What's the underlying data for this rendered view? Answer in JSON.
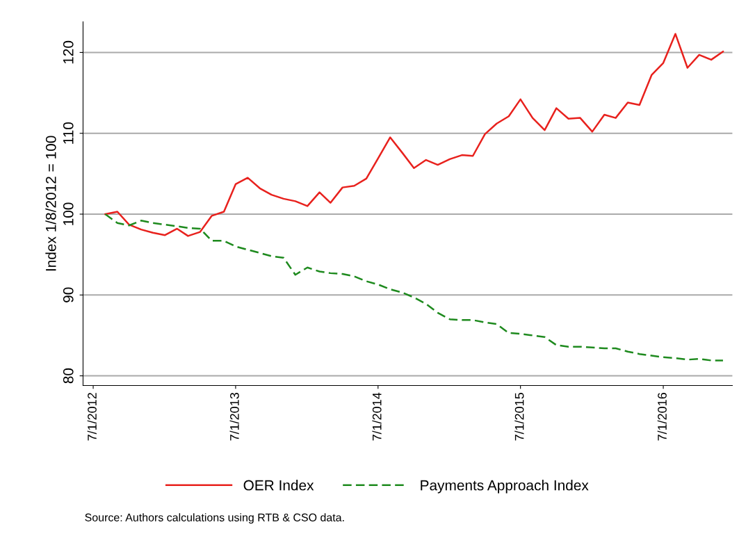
{
  "chart_data": {
    "type": "line",
    "ylabel": "Index 1/8/2012 = 100",
    "x": [
      "2012-08",
      "2012-09",
      "2012-10",
      "2012-11",
      "2012-12",
      "2013-01",
      "2013-02",
      "2013-03",
      "2013-04",
      "2013-05",
      "2013-06",
      "2013-07",
      "2013-08",
      "2013-09",
      "2013-10",
      "2013-11",
      "2013-12",
      "2014-01",
      "2014-02",
      "2014-03",
      "2014-04",
      "2014-05",
      "2014-06",
      "2014-07",
      "2014-08",
      "2014-09",
      "2014-10",
      "2014-11",
      "2014-12",
      "2015-01",
      "2015-02",
      "2015-03",
      "2015-04",
      "2015-05",
      "2015-06",
      "2015-07",
      "2015-08",
      "2015-09",
      "2015-10",
      "2015-11",
      "2015-12",
      "2016-01",
      "2016-02",
      "2016-03",
      "2016-04",
      "2016-05",
      "2016-06",
      "2016-07",
      "2016-08",
      "2016-09",
      "2016-10",
      "2016-11",
      "2016-12"
    ],
    "series": [
      {
        "name": "OER Index",
        "color": "#e8211d",
        "line_style": "solid",
        "values": [
          100,
          100.3,
          98.7,
          98.1,
          97.7,
          97.4,
          98.2,
          97.3,
          97.8,
          99.8,
          100.3,
          103.7,
          104.5,
          103.2,
          102.4,
          101.9,
          101.6,
          101.0,
          102.7,
          101.4,
          103.3,
          103.5,
          104.4,
          106.9,
          109.5,
          107.6,
          105.7,
          106.7,
          106.1,
          106.8,
          107.3,
          107.2,
          109.9,
          111.2,
          112.1,
          114.2,
          111.9,
          110.4,
          113.1,
          111.8,
          111.9,
          110.2,
          112.3,
          111.9,
          113.8,
          113.5,
          117.2,
          118.7,
          122.3,
          118.1,
          119.7,
          119.1,
          120.1
        ]
      },
      {
        "name": "Payments Approach Index",
        "color": "#1e8a1e",
        "line_style": "dashed",
        "values": [
          100,
          98.9,
          98.6,
          99.2,
          98.9,
          98.7,
          98.5,
          98.3,
          98.2,
          96.7,
          96.7,
          96.0,
          95.6,
          95.2,
          94.8,
          94.6,
          92.5,
          93.4,
          92.9,
          92.7,
          92.6,
          92.3,
          91.7,
          91.3,
          90.7,
          90.3,
          89.7,
          88.9,
          87.8,
          87.0,
          86.9,
          86.9,
          86.6,
          86.4,
          85.3,
          85.2,
          85.0,
          84.8,
          83.8,
          83.6,
          83.6,
          83.5,
          83.4,
          83.4,
          83.0,
          82.7,
          82.5,
          82.3,
          82.2,
          82.0,
          82.1,
          81.9,
          81.9
        ]
      }
    ],
    "xlim": [
      "2012-06-05",
      "2016-12-25"
    ],
    "xticks": [
      {
        "value": "2012-07-01",
        "label": "7/1/2012"
      },
      {
        "value": "2013-07-01",
        "label": "7/1/2013"
      },
      {
        "value": "2014-07-01",
        "label": "7/1/2014"
      },
      {
        "value": "2015-07-01",
        "label": "7/1/2015"
      },
      {
        "value": "2016-07-01",
        "label": "7/1/2016"
      }
    ],
    "ylim": [
      78.8,
      123.8
    ],
    "yticks": [
      80,
      90,
      100,
      110,
      120
    ],
    "grid": "y",
    "legend": "bottom",
    "marker": "none",
    "annotations": [
      "Source: Authors calculations using RTB & CSO data."
    ]
  }
}
